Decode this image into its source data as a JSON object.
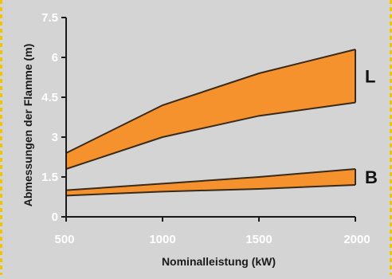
{
  "chart_data": {
    "type": "area",
    "xlabel": "Nominalleistung (kW)",
    "ylabel": "Abmessungen der Flamme (m)",
    "x": [
      500,
      1000,
      1500,
      2000
    ],
    "xlim": [
      500,
      2000
    ],
    "ylim": [
      0,
      7.5
    ],
    "xticks": [
      "500",
      "1000",
      "1500",
      "2000"
    ],
    "yticks": [
      "0",
      "1.5",
      "3",
      "4.5",
      "6",
      "7.5"
    ],
    "grid": false,
    "bands": [
      {
        "label": "L",
        "lower": [
          1.8,
          3.0,
          3.8,
          4.3
        ],
        "upper": [
          2.4,
          4.2,
          5.4,
          6.3
        ]
      },
      {
        "label": "B",
        "lower": [
          0.8,
          0.95,
          1.05,
          1.2
        ],
        "upper": [
          1.0,
          1.25,
          1.5,
          1.8
        ]
      }
    ],
    "colors": {
      "fill": "#f5922e",
      "stroke": "#3a2a1a",
      "axis": "#1a1a1a",
      "background": "#d4d4d4",
      "border": "#f0c400"
    }
  }
}
